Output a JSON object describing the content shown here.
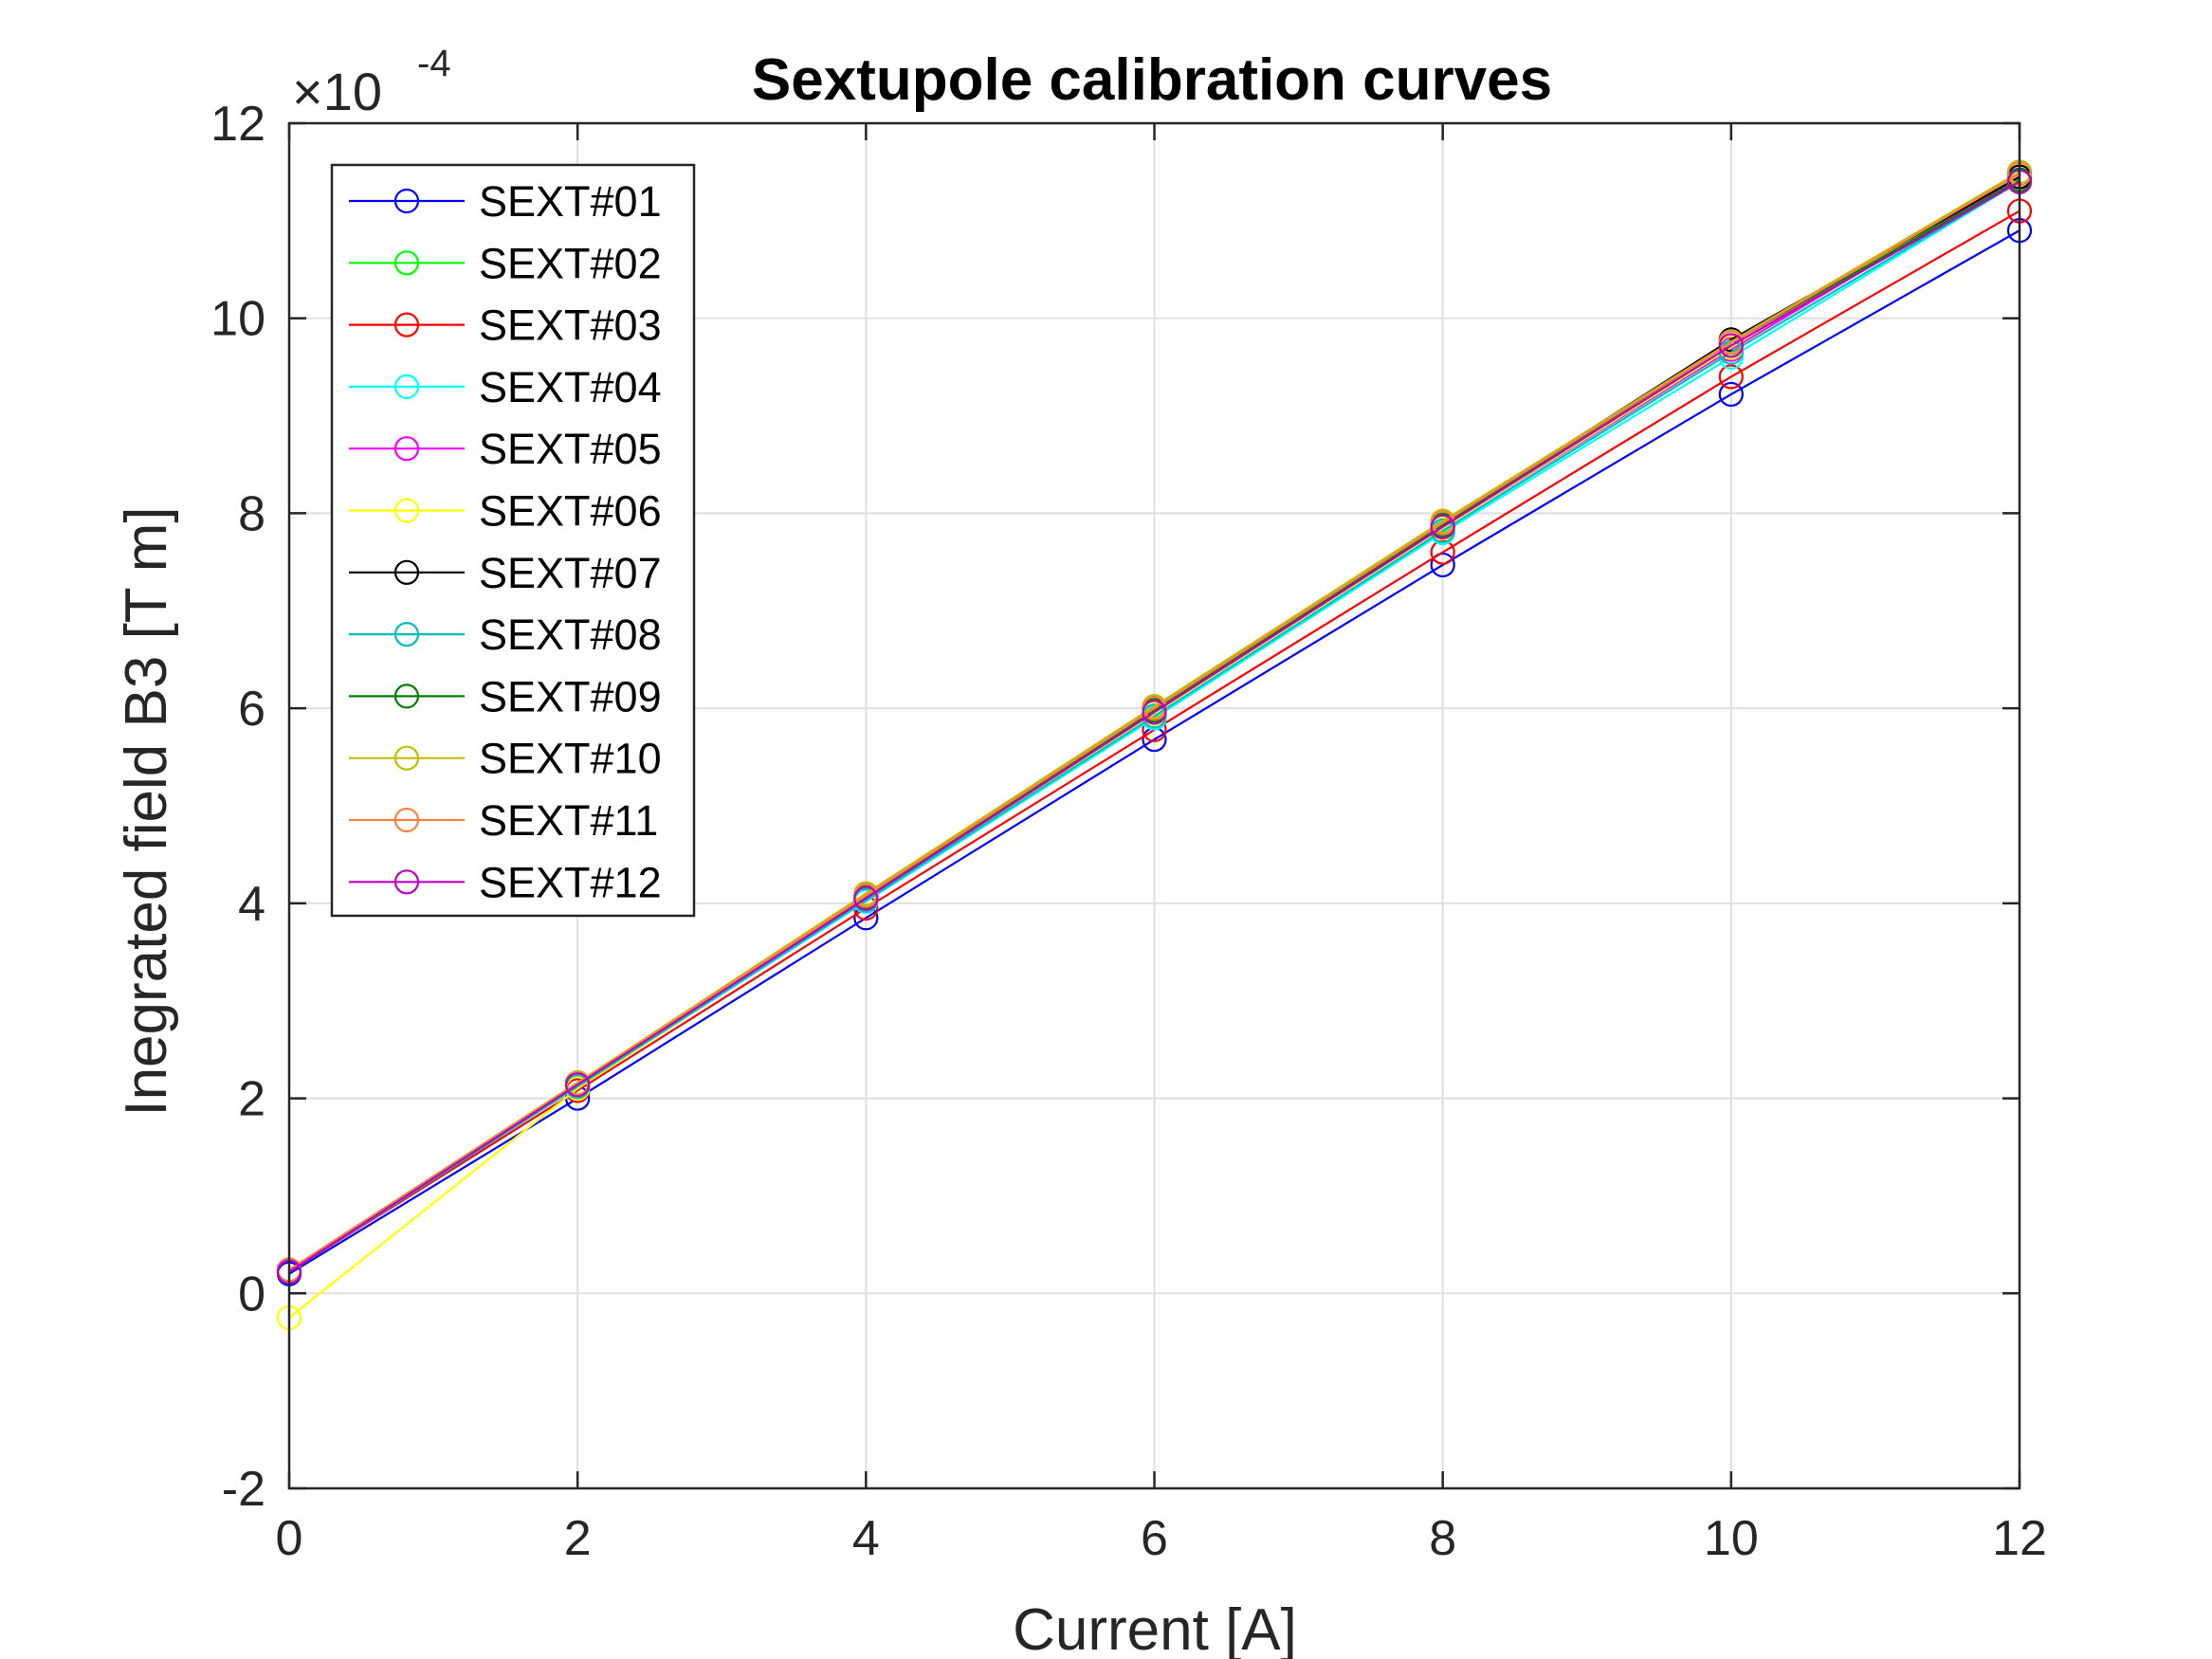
{
  "chart_data": {
    "type": "line",
    "title": "Sextupole calibration curves",
    "xlabel": "Current [A]",
    "ylabel": "Inegrated field B3 [T m]",
    "exponent_base": "×10",
    "exponent_power": "-4",
    "xlim": [
      0,
      12
    ],
    "ylim": [
      -2,
      12
    ],
    "xticks": [
      "0",
      "2",
      "4",
      "6",
      "8",
      "10",
      "12"
    ],
    "yticks": [
      "-2",
      "0",
      "2",
      "4",
      "6",
      "8",
      "10",
      "12"
    ],
    "grid": true,
    "legend_position": "top-left",
    "marker": "open-circle",
    "x": [
      0,
      2,
      4,
      6,
      8,
      10,
      12
    ],
    "series": [
      {
        "name": "SEXT#01",
        "color": "#0000ff",
        "values": [
          0.2,
          2.0,
          3.85,
          5.68,
          7.47,
          9.22,
          10.9
        ]
      },
      {
        "name": "SEXT#02",
        "color": "#00ff00",
        "values": [
          0.22,
          2.12,
          4.05,
          5.95,
          7.85,
          9.7,
          11.45
        ]
      },
      {
        "name": "SEXT#03",
        "color": "#ff0000",
        "values": [
          0.22,
          2.08,
          3.95,
          5.78,
          7.6,
          9.4,
          11.1
        ]
      },
      {
        "name": "SEXT#04",
        "color": "#00ffff",
        "values": [
          0.22,
          2.12,
          4.02,
          5.9,
          7.8,
          9.6,
          11.4
        ]
      },
      {
        "name": "SEXT#05",
        "color": "#ff00ff",
        "values": [
          0.24,
          2.14,
          4.05,
          5.95,
          7.85,
          9.68,
          11.45
        ]
      },
      {
        "name": "SEXT#06",
        "color": "#ffff00",
        "values": [
          -0.25,
          2.1,
          4.05,
          5.95,
          7.85,
          9.7,
          11.5
        ]
      },
      {
        "name": "SEXT#07",
        "color": "#000000",
        "values": [
          0.24,
          2.16,
          4.08,
          6.0,
          7.9,
          9.78,
          11.45
        ]
      },
      {
        "name": "SEXT#08",
        "color": "#00bfbf",
        "values": [
          0.22,
          2.12,
          4.03,
          5.92,
          7.82,
          9.65,
          11.4
        ]
      },
      {
        "name": "SEXT#09",
        "color": "#008000",
        "values": [
          0.23,
          2.15,
          4.07,
          5.98,
          7.88,
          9.75,
          11.42
        ]
      },
      {
        "name": "SEXT#10",
        "color": "#bfbf00",
        "values": [
          0.24,
          2.16,
          4.1,
          6.02,
          7.92,
          9.76,
          11.5
        ]
      },
      {
        "name": "SEXT#11",
        "color": "#ff8040",
        "values": [
          0.24,
          2.15,
          4.08,
          6.0,
          7.9,
          9.75,
          11.48
        ]
      },
      {
        "name": "SEXT#12",
        "color": "#bf00bf",
        "values": [
          0.22,
          2.14,
          4.05,
          5.96,
          7.86,
          9.72,
          11.4
        ]
      }
    ]
  }
}
